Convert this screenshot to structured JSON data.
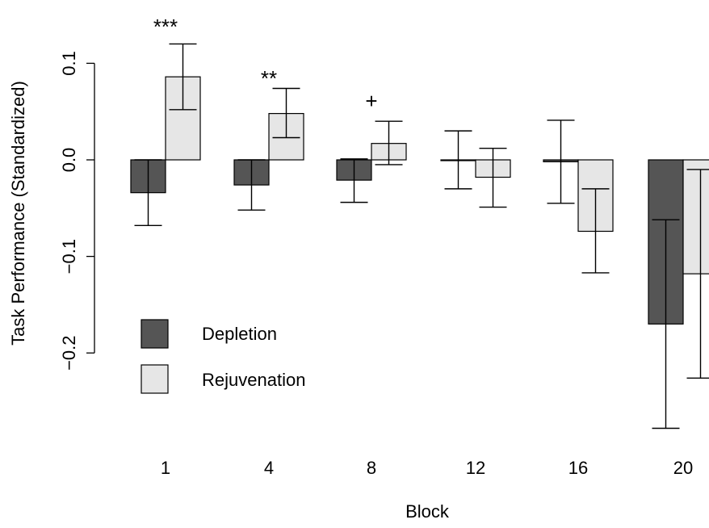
{
  "chart_data": {
    "type": "bar",
    "title": "",
    "xlabel": "Block",
    "ylabel": "Task Performance (Standardized)",
    "categories": [
      "1",
      "4",
      "8",
      "12",
      "16",
      "20"
    ],
    "ylim": [
      -0.28,
      0.14
    ],
    "yticks": [
      {
        "value": 0.1,
        "label": "0.1"
      },
      {
        "value": 0.0,
        "label": "0.0"
      },
      {
        "value": -0.1,
        "label": "−0.1"
      },
      {
        "value": -0.2,
        "label": "−0.2"
      }
    ],
    "series": [
      {
        "name": "Depletion",
        "color": "#555555",
        "values": [
          -0.034,
          -0.026,
          -0.021,
          0.0,
          -0.002,
          -0.17
        ],
        "error_low": [
          -0.068,
          -0.052,
          -0.044,
          -0.03,
          -0.045,
          -0.278
        ],
        "error_high": [
          0.0,
          0.0,
          0.001,
          0.03,
          0.041,
          -0.062
        ]
      },
      {
        "name": "Rejuvenation",
        "color": "#e6e6e6",
        "values": [
          0.086,
          0.048,
          0.017,
          -0.018,
          -0.074,
          -0.118
        ],
        "error_low": [
          0.052,
          0.023,
          -0.005,
          -0.049,
          -0.117,
          -0.226
        ],
        "error_high": [
          0.12,
          0.074,
          0.04,
          0.012,
          -0.03,
          -0.01
        ]
      }
    ],
    "annotations": [
      "***",
      "**",
      "+",
      "",
      "",
      ""
    ],
    "legend": {
      "position": "bottom-left",
      "entries": [
        "Depletion",
        "Rejuvenation"
      ]
    }
  }
}
